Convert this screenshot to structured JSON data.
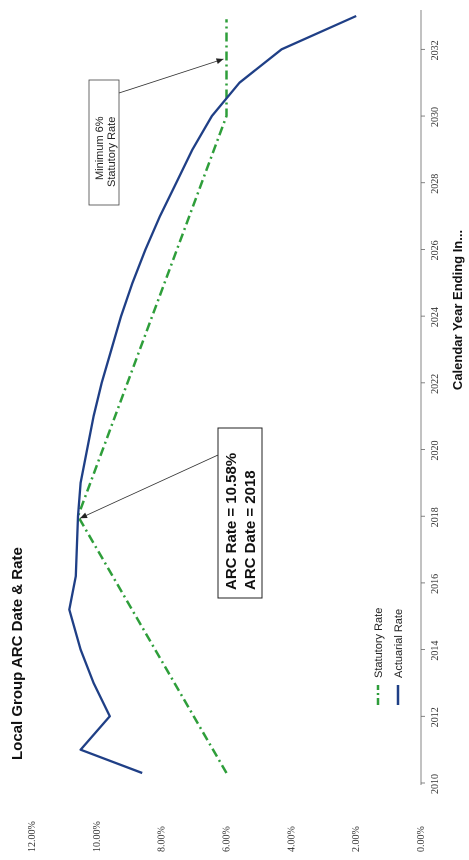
{
  "chart_data": {
    "type": "line",
    "title": "Local Group ARC Date & Rate",
    "xlabel": "Calendar Year Ending In...",
    "ylabel": "",
    "xlim": [
      2010,
      2033
    ],
    "ylim": [
      0,
      12
    ],
    "x_ticks": [
      2010,
      2012,
      2014,
      2016,
      2018,
      2020,
      2022,
      2024,
      2026,
      2028,
      2030,
      2032
    ],
    "y_ticks": [
      "0.00%",
      "2.00%",
      "4.00%",
      "6.00%",
      "8.00%",
      "10.00%",
      "12.00%"
    ],
    "y_tick_values": [
      0,
      2,
      4,
      6,
      8,
      10,
      12
    ],
    "series": [
      {
        "name": "Statutory Rate",
        "style": "dash-dot",
        "color": "#2e9e3a",
        "points": [
          [
            2010.3,
            6.0
          ],
          [
            2018.0,
            10.58
          ],
          [
            2030.0,
            6.0
          ],
          [
            2031.3,
            6.0
          ],
          [
            2032.9,
            6.0
          ]
        ]
      },
      {
        "name": "Actuarial Rate",
        "style": "solid",
        "color": "#1f3f86",
        "points": [
          [
            2010.3,
            8.6
          ],
          [
            2011.0,
            10.5
          ],
          [
            2012.0,
            9.6
          ],
          [
            2013.0,
            10.1
          ],
          [
            2014.0,
            10.5
          ],
          [
            2015.2,
            10.85
          ],
          [
            2016.2,
            10.65
          ],
          [
            2018.0,
            10.58
          ],
          [
            2019.0,
            10.5
          ],
          [
            2020.0,
            10.3
          ],
          [
            2021.0,
            10.1
          ],
          [
            2022.0,
            9.85
          ],
          [
            2023.0,
            9.55
          ],
          [
            2024.0,
            9.25
          ],
          [
            2025.0,
            8.9
          ],
          [
            2026.0,
            8.5
          ],
          [
            2027.0,
            8.05
          ],
          [
            2028.0,
            7.55
          ],
          [
            2029.0,
            7.05
          ],
          [
            2030.0,
            6.45
          ],
          [
            2031.0,
            5.6
          ],
          [
            2032.0,
            4.3
          ],
          [
            2033.0,
            2.0
          ]
        ]
      }
    ],
    "annotations": [
      {
        "lines": [
          "ARC Rate = 10.58%",
          "ARC Date = 2018"
        ],
        "points_to": [
          2018.0,
          10.58
        ]
      },
      {
        "lines": [
          "Minimum 6%",
          "Statutory Rate"
        ],
        "points_to": [
          2031.8,
          6.0
        ]
      }
    ],
    "legend": {
      "placement": "lower-left",
      "entries": [
        "Statutory Rate",
        "Actuarial Rate"
      ]
    },
    "grid": false,
    "orientation": "rotated-90-clockwise"
  }
}
